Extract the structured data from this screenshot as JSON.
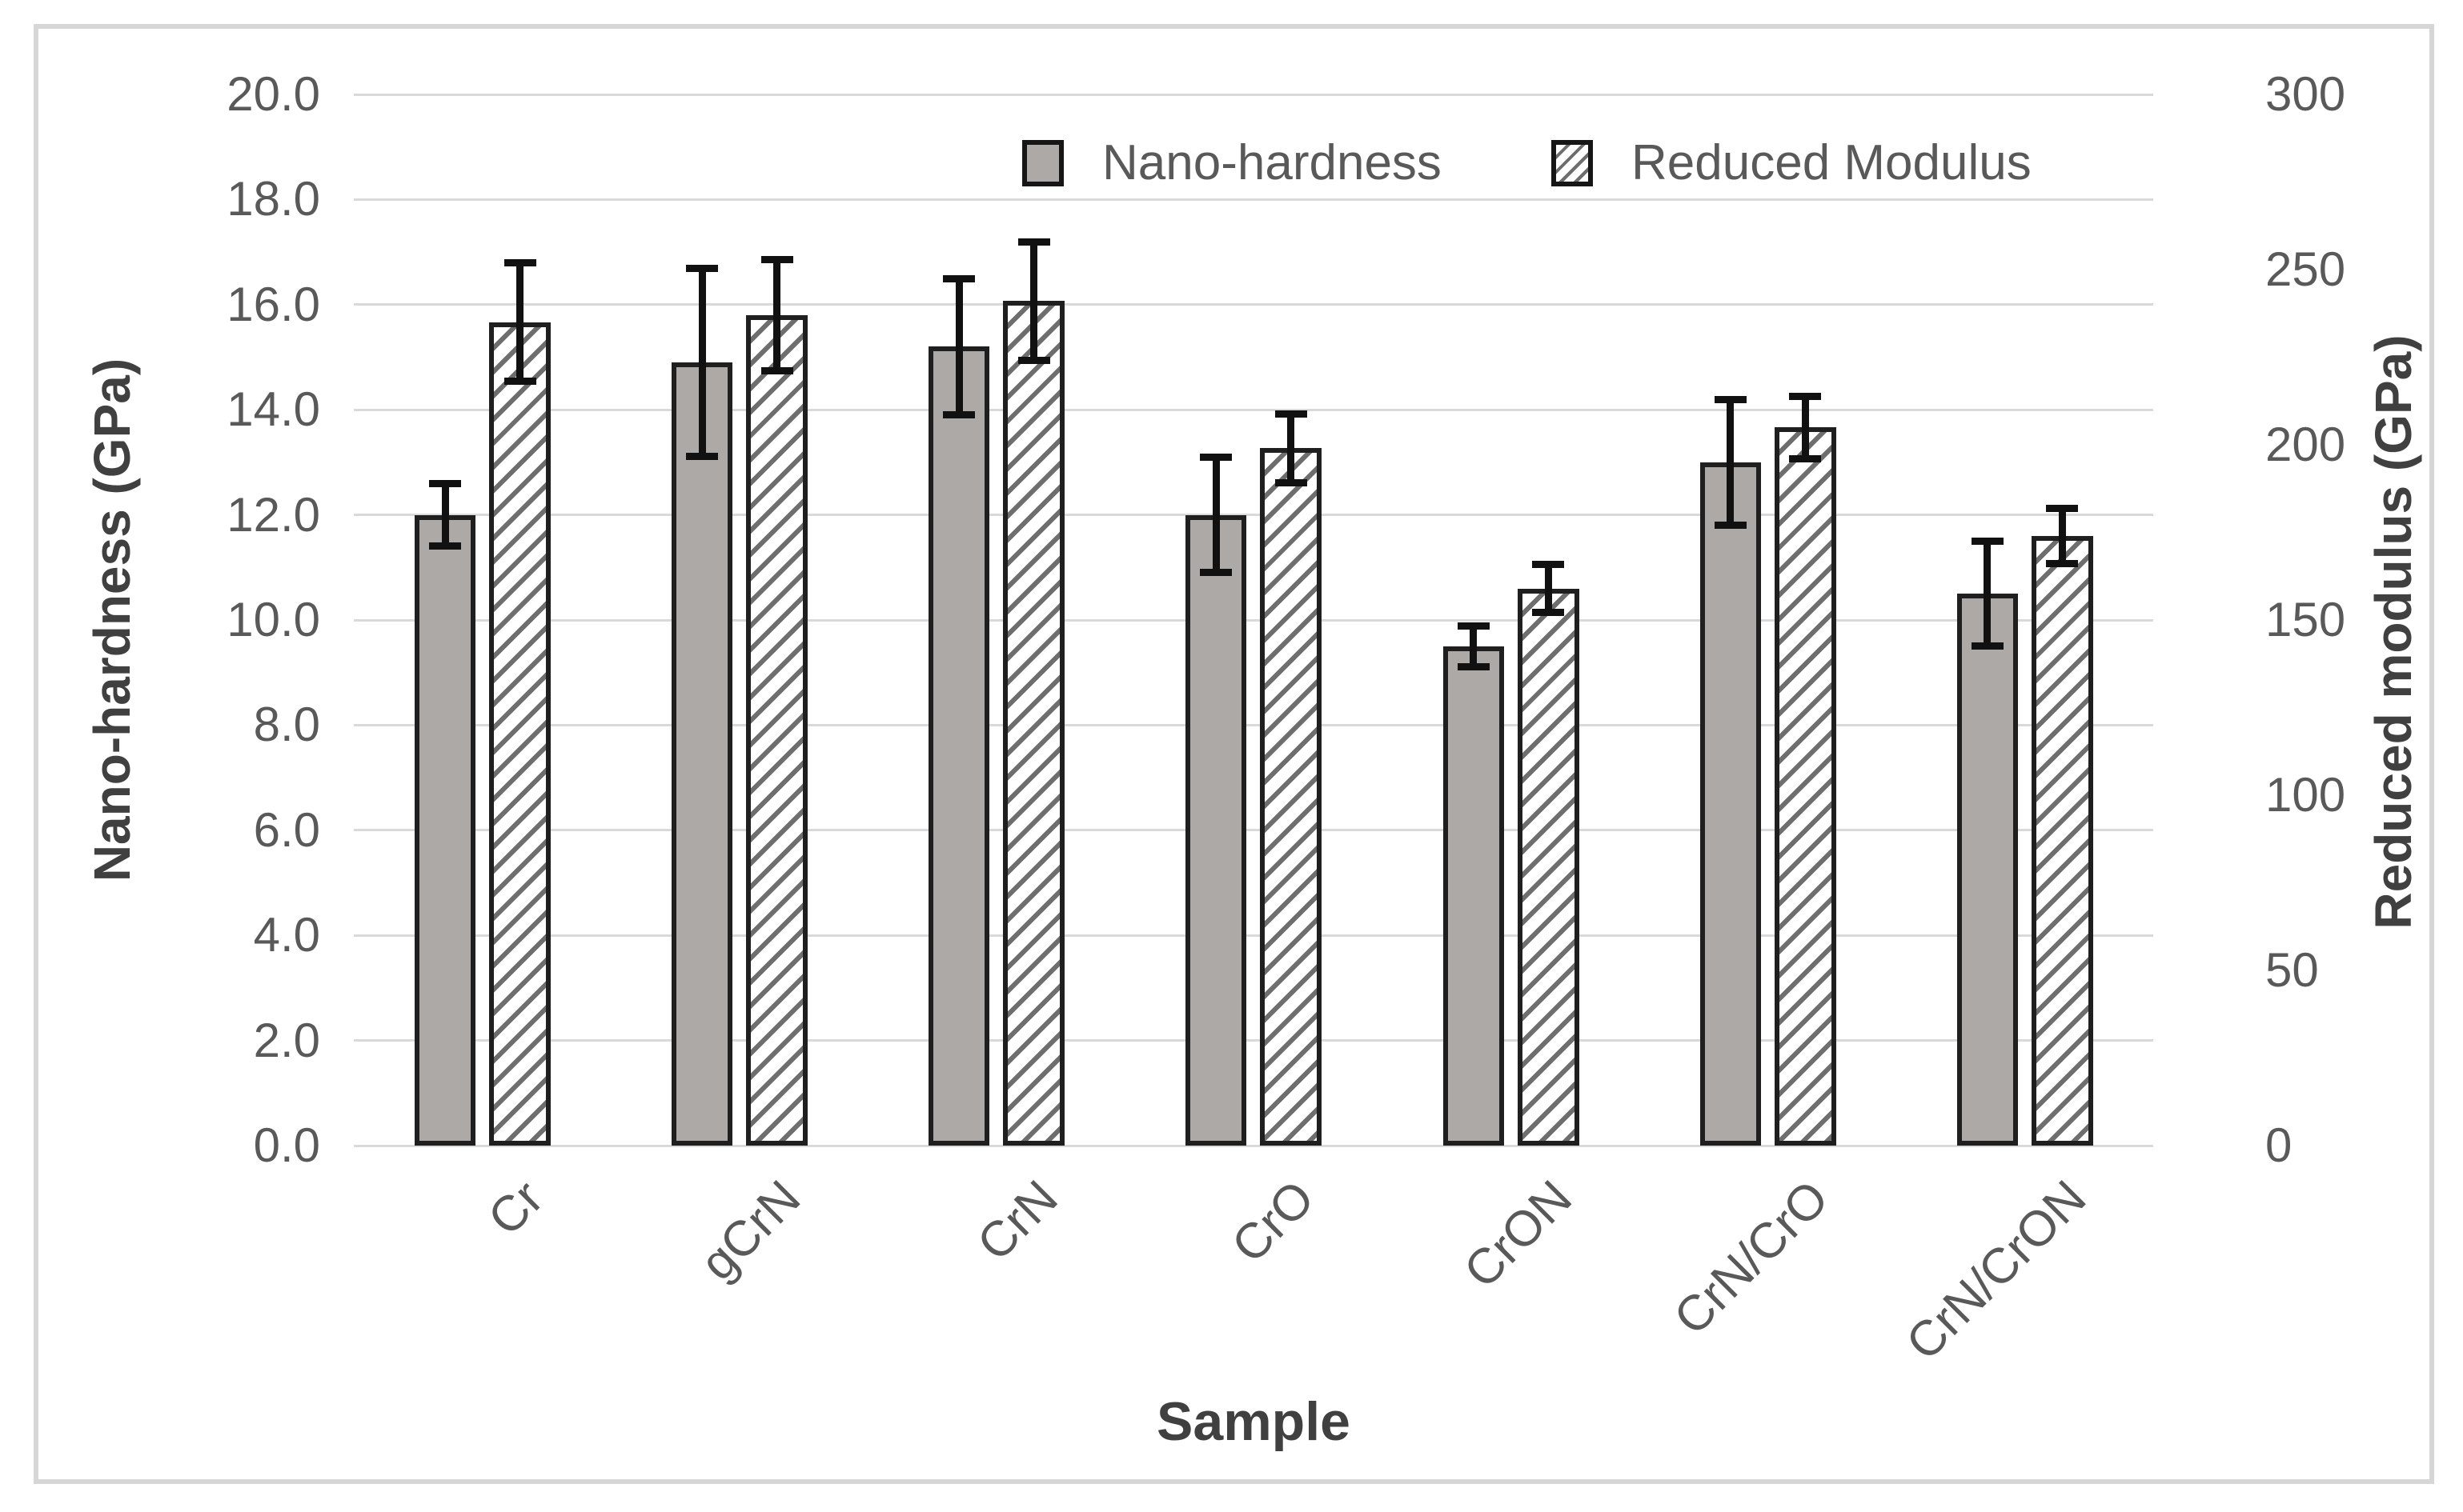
{
  "chart_data": {
    "type": "bar",
    "title": "",
    "categories": [
      "Cr",
      "gCrN",
      "CrN",
      "CrO",
      "CrON",
      "CrN/CrO",
      "CrN/CrON"
    ],
    "series": [
      {
        "name": "Nano-hardness",
        "axis": "left",
        "style": "solid-gray",
        "values": [
          12.0,
          14.9,
          15.2,
          12.0,
          9.5,
          13.0,
          10.5
        ],
        "errors": [
          0.6,
          1.8,
          1.3,
          1.1,
          0.4,
          1.2,
          1.0
        ]
      },
      {
        "name": "Reduced Modulus",
        "axis": "right",
        "style": "hatched",
        "values": [
          235,
          237,
          241,
          199,
          159,
          205,
          174
        ],
        "errors": [
          17,
          16,
          17,
          10,
          7,
          9,
          8
        ]
      }
    ],
    "left_axis": {
      "label": "Nano-hardness (GPa)",
      "min": 0,
      "max": 20,
      "ticks": [
        "20.0",
        "18.0",
        "16.0",
        "14.0",
        "12.0",
        "10.0",
        "8.0",
        "6.0",
        "4.0",
        "2.0",
        "0.0"
      ]
    },
    "right_axis": {
      "label": "Reduced modulus (GPa)",
      "min": 0,
      "max": 300,
      "ticks": [
        "300",
        "250",
        "200",
        "150",
        "100",
        "50",
        "0"
      ]
    },
    "x_axis": {
      "label": "Sample"
    },
    "legend_position": "top",
    "grid": true
  },
  "colors": {
    "bar_fill": "#aca9a6",
    "bar_border": "#1f1f1f",
    "hatch_line": "#6e6e6e",
    "grid": "#d9d9d9",
    "tick_text": "#595959",
    "title_text": "#404040",
    "error_bar": "#111111",
    "frame_border": "#d6d6d6"
  }
}
